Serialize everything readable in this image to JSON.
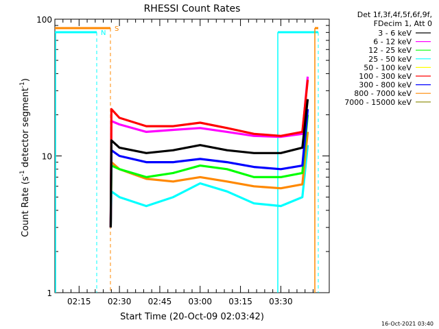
{
  "chart_data": {
    "type": "line",
    "title": "RHESSI Count Rates",
    "xlabel": "Start Time (20-Oct-09 02:03:42)",
    "ylabel_main": "Count Rate (s",
    "ylabel_sup1": "-1",
    "ylabel_mid": " detector segment",
    "ylabel_sup2": "-1",
    "ylabel_end": ")",
    "y_scale": "log",
    "ylim": [
      1,
      100
    ],
    "xlim_minutes": [
      126,
      228
    ],
    "x_ticks": [
      {
        "label": "02:15",
        "minute": 135
      },
      {
        "label": "02:30",
        "minute": 150
      },
      {
        "label": "02:45",
        "minute": 165
      },
      {
        "label": "03:00",
        "minute": 180
      },
      {
        "label": "03:15",
        "minute": 195
      },
      {
        "label": "03:30",
        "minute": 210
      }
    ],
    "y_ticks": [
      {
        "label": "1",
        "value": 1
      },
      {
        "label": "10",
        "value": 10
      },
      {
        "label": "100",
        "value": 100
      }
    ],
    "legend_header": [
      "Det 1f,3f,4f,5f,6f,9f,",
      "FDecim 1, Att 0"
    ],
    "series": [
      {
        "name": "3 - 6 keV",
        "color": "#000000",
        "values": [
          [
            147,
            13
          ],
          [
            150,
            11.5
          ],
          [
            160,
            10.5
          ],
          [
            170,
            11
          ],
          [
            180,
            12
          ],
          [
            190,
            11
          ],
          [
            200,
            10.5
          ],
          [
            210,
            10.5
          ],
          [
            218,
            11.5
          ],
          [
            220,
            26
          ]
        ]
      },
      {
        "name": "6 - 12 keV",
        "color": "#ff00ff",
        "values": [
          [
            147,
            18
          ],
          [
            150,
            17
          ],
          [
            160,
            15
          ],
          [
            170,
            15.5
          ],
          [
            180,
            16
          ],
          [
            190,
            15
          ],
          [
            200,
            14
          ],
          [
            210,
            13.8
          ],
          [
            218,
            14.5
          ],
          [
            220,
            38
          ]
        ]
      },
      {
        "name": "12 - 25 keV",
        "color": "#00ff00",
        "values": [
          [
            147,
            8.5
          ],
          [
            150,
            8
          ],
          [
            160,
            7
          ],
          [
            170,
            7.5
          ],
          [
            180,
            8.5
          ],
          [
            190,
            8
          ],
          [
            200,
            7
          ],
          [
            210,
            7
          ],
          [
            218,
            7.5
          ],
          [
            220,
            20
          ]
        ]
      },
      {
        "name": "25 - 50 keV",
        "color": "#00ffff",
        "values": [
          [
            147,
            5.5
          ],
          [
            150,
            5
          ],
          [
            160,
            4.3
          ],
          [
            170,
            5
          ],
          [
            180,
            6.3
          ],
          [
            190,
            5.5
          ],
          [
            200,
            4.5
          ],
          [
            210,
            4.3
          ],
          [
            218,
            5
          ],
          [
            220,
            12
          ]
        ]
      },
      {
        "name": "50 - 100 keV",
        "color": "#ffff00",
        "values": []
      },
      {
        "name": "100 - 300 keV",
        "color": "#ff0000",
        "values": [
          [
            147,
            22
          ],
          [
            150,
            19
          ],
          [
            160,
            16.5
          ],
          [
            170,
            16.5
          ],
          [
            180,
            17.5
          ],
          [
            190,
            16
          ],
          [
            200,
            14.5
          ],
          [
            210,
            14
          ],
          [
            218,
            15
          ],
          [
            220,
            36
          ]
        ]
      },
      {
        "name": "300 - 800 keV",
        "color": "#0000ff",
        "values": [
          [
            147,
            11
          ],
          [
            150,
            10
          ],
          [
            160,
            9
          ],
          [
            170,
            9
          ],
          [
            180,
            9.5
          ],
          [
            190,
            9
          ],
          [
            200,
            8.3
          ],
          [
            210,
            8
          ],
          [
            218,
            8.5
          ],
          [
            220,
            22
          ]
        ]
      },
      {
        "name": "800 - 7000 keV",
        "color": "#ff8800",
        "values": [
          [
            147,
            9
          ],
          [
            150,
            8
          ],
          [
            160,
            6.8
          ],
          [
            170,
            6.5
          ],
          [
            180,
            7
          ],
          [
            190,
            6.5
          ],
          [
            200,
            6
          ],
          [
            210,
            5.8
          ],
          [
            218,
            6.2
          ],
          [
            220,
            15
          ]
        ]
      },
      {
        "name": "7000 - 15000 keV",
        "color": "#888800",
        "values": []
      }
    ],
    "flags": [
      {
        "label": "N",
        "color": "#00ffff"
      },
      {
        "label": "S",
        "color": "#ff8800"
      }
    ],
    "footer": "16-Oct-2021 03:40"
  }
}
